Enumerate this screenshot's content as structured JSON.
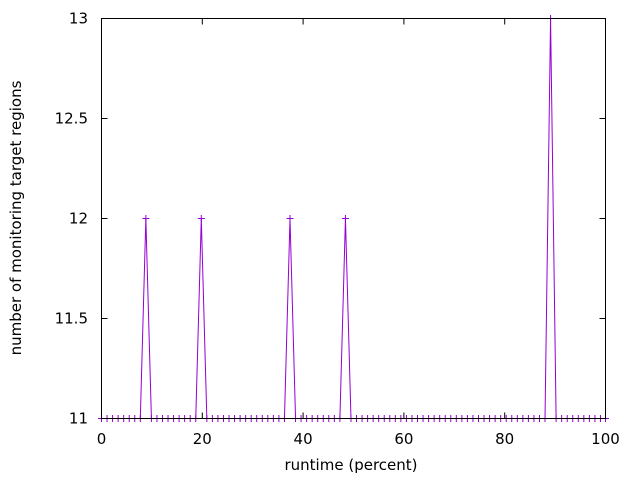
{
  "chart_data": {
    "type": "line",
    "title": "",
    "xlabel": "runtime (percent)",
    "ylabel": "number of monitoring target regions",
    "xlim": [
      0,
      100
    ],
    "ylim": [
      11,
      13
    ],
    "xticks": [
      0,
      20,
      40,
      60,
      80,
      100
    ],
    "yticks": [
      11,
      11.5,
      12,
      12.5,
      13
    ],
    "xtick_labels": [
      "0",
      "20",
      "40",
      "60",
      "80",
      "100"
    ],
    "ytick_labels": [
      "11",
      "11.5",
      "12",
      "12.5",
      "13"
    ],
    "grid": false,
    "legend": "none",
    "series": [
      {
        "color": "#9400d3",
        "marker": "plus",
        "x": [
          0,
          1.1,
          2.2,
          3.3,
          4.4,
          5.5,
          6.6,
          7.7,
          8.8,
          9.9,
          11,
          12.1,
          13.2,
          14.3,
          15.4,
          16.5,
          17.6,
          18.7,
          19.8,
          20.9,
          22,
          23.1,
          24.2,
          25.3,
          26.4,
          27.5,
          28.6,
          29.7,
          30.8,
          31.9,
          33,
          34.1,
          35.2,
          36.3,
          37.4,
          38.5,
          39.6,
          40.7,
          41.8,
          42.9,
          44,
          45.1,
          46.2,
          47.3,
          48.4,
          49.5,
          50.6,
          51.7,
          52.8,
          53.9,
          55,
          56.1,
          57.2,
          58.3,
          59.4,
          60.5,
          61.6,
          62.7,
          63.8,
          64.9,
          66,
          67.1,
          68.2,
          69.3,
          70.4,
          71.5,
          72.6,
          73.7,
          74.8,
          75.9,
          77,
          78.1,
          79.2,
          80.3,
          81.4,
          82.5,
          83.6,
          84.7,
          85.8,
          86.9,
          88,
          89.1,
          90.2,
          91.3,
          92.4,
          93.5,
          94.6,
          95.7,
          96.8,
          97.9,
          99,
          100
        ],
        "y": [
          11,
          11,
          11,
          11,
          11,
          11,
          11,
          11,
          12,
          11,
          11,
          11,
          11,
          11,
          11,
          11,
          11,
          11,
          12,
          11,
          11,
          11,
          11,
          11,
          11,
          11,
          11,
          11,
          11,
          11,
          11,
          11,
          11,
          11,
          12,
          11,
          11,
          11,
          11,
          11,
          11,
          11,
          11,
          11,
          12,
          11,
          11,
          11,
          11,
          11,
          11,
          11,
          11,
          11,
          11,
          11,
          11,
          11,
          11,
          11,
          11,
          11,
          11,
          11,
          11,
          11,
          11,
          11,
          11,
          11,
          11,
          11,
          11,
          11,
          11,
          11,
          11,
          11,
          11,
          11,
          11,
          13,
          11,
          11,
          11,
          11,
          11,
          11,
          11,
          11,
          11,
          11
        ]
      }
    ]
  }
}
